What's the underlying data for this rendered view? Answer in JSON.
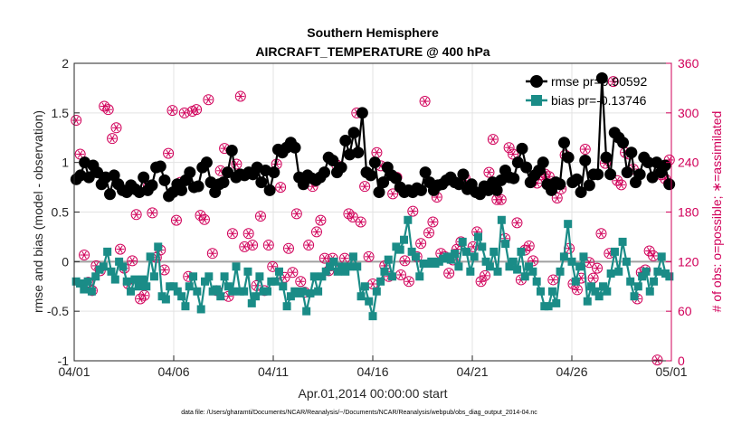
{
  "chart_data": {
    "type": "line",
    "title": "Southern Hemisphere",
    "subtitle": "AIRCRAFT_TEMPERATURE @ 400 hPa",
    "xlabel": "Apr.01,2014 00:00:00 start",
    "ylabel_left": "rmse and bias (model - observation)",
    "ylabel_right": "# of obs: o=possible; ∗=assimilated",
    "footnote": "data file: /Users/gharamti/Documents/NCAR/Reanalysis/~/Documents/NCAR/Reanalysis/webpub/obs_diag_output_2014-04.nc",
    "x_ticks": [
      "04/01",
      "04/06",
      "04/11",
      "04/16",
      "04/21",
      "04/26",
      "05/01"
    ],
    "x_tick_days": [
      0,
      5,
      10,
      15,
      20,
      25,
      30
    ],
    "xlim": [
      0,
      30
    ],
    "ylim_left": [
      -1,
      2
    ],
    "y_ticks_left": [
      "-1",
      "-0.5",
      "0",
      "0.5",
      "1",
      "1.5",
      "2"
    ],
    "ylim_right": [
      0,
      360
    ],
    "y_ticks_right": [
      "0",
      "60",
      "120",
      "180",
      "240",
      "300",
      "360"
    ],
    "grid": true,
    "legend_position": "top-right",
    "colors": {
      "rmse": "#000000",
      "bias": "#1a8c87",
      "obs": "#d1005a",
      "zero_line": "#a0a0a0",
      "right_axis": "#d1005a"
    },
    "series": [
      {
        "name": "rmse pr=0.90592",
        "axis": "left",
        "values": [
          0.83,
          0.87,
          1.0,
          0.85,
          0.97,
          0.9,
          0.78,
          0.85,
          0.68,
          0.87,
          0.78,
          0.72,
          0.7,
          0.77,
          0.73,
          0.7,
          0.85,
          0.72,
          0.77,
          0.95,
          0.96,
          0.82,
          0.66,
          0.7,
          0.78,
          0.72,
          0.82,
          0.9,
          0.75,
          0.76,
          0.95,
          1.0,
          0.8,
          0.7,
          0.78,
          0.8,
          0.9,
          1.12,
          0.85,
          0.88,
          0.87,
          0.9,
          0.88,
          0.95,
          0.8,
          0.92,
          0.72,
          0.9,
          1.13,
          1.1,
          1.15,
          1.2,
          1.15,
          0.85,
          0.78,
          0.87,
          0.84,
          0.82,
          0.85,
          0.9,
          1.05,
          1.02,
          0.9,
          0.95,
          1.22,
          1.08,
          1.3,
          1.1,
          1.5,
          0.9,
          0.87,
          1.0,
          0.7,
          0.8,
          0.95,
          0.87,
          0.84,
          0.75,
          0.7,
          0.72,
          0.7,
          0.74,
          0.72,
          0.9,
          0.8,
          0.72,
          0.77,
          0.78,
          0.82,
          0.85,
          0.8,
          0.78,
          0.88,
          0.73,
          0.78,
          0.7,
          0.68,
          0.76,
          0.72,
          0.8,
          0.72,
          0.82,
          0.92,
          0.85,
          0.84,
          1.0,
          1.14,
          0.95,
          0.8,
          0.87,
          0.92,
          1.0,
          0.78,
          0.72,
          0.8,
          0.78,
          1.2,
          1.05,
          0.8,
          0.83,
          0.7,
          1.02,
          0.77,
          0.88,
          0.88,
          1.85,
          1.05,
          0.88,
          1.3,
          1.25,
          1.2,
          0.9,
          1.1,
          0.8,
          0.88,
          1.05,
          1.0,
          0.85,
          1.0,
          0.9,
          0.97,
          0.78
        ]
      },
      {
        "name": "bias pr=-0.13746",
        "axis": "left",
        "values": [
          -0.2,
          -0.22,
          -0.28,
          -0.2,
          -0.3,
          -0.15,
          -0.08,
          -0.05,
          0.1,
          -0.1,
          -0.18,
          0.0,
          -0.05,
          -0.2,
          -0.3,
          -0.18,
          -0.25,
          -0.18,
          -0.25,
          0.05,
          -0.15,
          0.15,
          -0.35,
          -0.38,
          -0.25,
          -0.25,
          -0.3,
          -0.35,
          -0.45,
          -0.25,
          -0.15,
          -0.3,
          -0.48,
          -0.2,
          -0.15,
          -0.3,
          -0.28,
          -0.35,
          -0.15,
          -0.25,
          -0.3,
          -0.05,
          -0.3,
          -0.3,
          -0.1,
          -0.42,
          -0.35,
          -0.15,
          -0.3,
          -0.3,
          -0.2,
          -0.2,
          -0.1,
          -0.25,
          -0.45,
          -0.35,
          -0.3,
          -0.32,
          -0.3,
          -0.5,
          -0.32,
          -0.15,
          -0.3,
          -0.15,
          -0.1,
          -0.05,
          0.0,
          -0.1,
          -0.05,
          -0.1,
          -0.05,
          0.05,
          -0.05,
          -0.35,
          -0.25,
          -0.4,
          -0.55,
          -0.3,
          -0.2,
          -0.1,
          0.02,
          -0.15,
          0.15,
          0.12,
          0.22,
          0.42,
          0.1,
          0.05,
          -0.15,
          -0.02,
          -0.02,
          0.0,
          -0.02,
          0.0,
          0.03,
          0.05,
          0.02,
          0.08,
          -0.05,
          0.2,
          0.1,
          -0.1,
          0.05,
          0.25,
          0.15,
          0.0,
          -0.05,
          0.1,
          -0.1,
          0.42,
          0.18,
          -0.05,
          0.0,
          -0.08,
          0.1,
          -0.15,
          -0.05,
          -0.1,
          -0.2,
          -0.3,
          -0.45,
          -0.45,
          -0.3,
          -0.42,
          -0.1,
          0.05,
          0.38,
          0.0,
          -0.2,
          -0.05,
          0.05,
          -0.4,
          -0.25,
          -0.3,
          -0.35,
          -0.25,
          -0.3,
          -0.12,
          0.1,
          -0.1,
          0.2,
          0.0,
          -0.2,
          -0.35,
          -0.25,
          -0.15,
          -0.1,
          -0.3,
          -0.2,
          -0.1,
          0.05,
          -0.12,
          -0.15
        ]
      },
      {
        "name": "possible",
        "axis": "right",
        "values": [
          291,
          250,
          128,
          95,
          85,
          115,
          109,
          308,
          304,
          269,
          282,
          135,
          112,
          93,
          121,
          177,
          75,
          79,
          211,
          179,
          125,
          134,
          110,
          251,
          303,
          170,
          216,
          300,
          102,
          302,
          304,
          176,
          171,
          316,
          130,
          85,
          230,
          257,
          78,
          154,
          238,
          320,
          138,
          154,
          140,
          91,
          175,
          85,
          140,
          114,
          238,
          210,
          101,
          136,
          107,
          178,
          96,
          83,
          140,
          211,
          156,
          170,
          124,
          109,
          124,
          237,
          111,
          124,
          178,
          174,
          300,
          168,
          211,
          126,
          93,
          252,
          236,
          115,
          102,
          202,
          222,
          104,
          121,
          96,
          181,
          126,
          142,
          314,
          155,
          168,
          198,
          130,
          126,
          106,
          122,
          135,
          144,
          221,
          211,
          138,
          156,
          96,
          103,
          228,
          268,
          195,
          195,
          148,
          258,
          250,
          167,
          98,
          134,
          139,
          121,
          215,
          225,
          226,
          223,
          98,
          197,
          208,
          249,
          136,
          93,
          86,
          100,
          256,
          119,
          100,
          112,
          154,
          239,
          130,
          338,
          218,
          213,
          252,
          250,
          232,
          75,
          107,
          110,
          133,
          127,
          1,
          225,
          220,
          243
        ]
      }
    ]
  }
}
